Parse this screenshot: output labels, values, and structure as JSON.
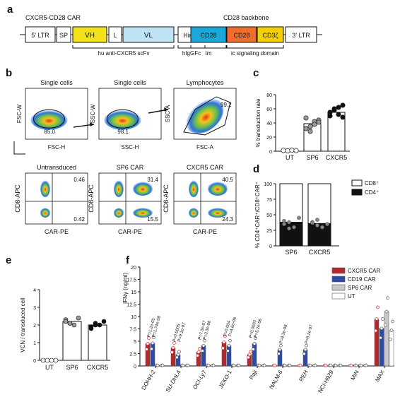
{
  "panels": {
    "a": "a",
    "b": "b",
    "c": "c",
    "d": "d",
    "e": "e",
    "f": "f"
  },
  "construct": {
    "title_left": "CXCR5-CD28 CAR",
    "title_right": "CD28 backbone",
    "segments": [
      {
        "label": "5' LTR",
        "color": "#ffffff"
      },
      {
        "label": "SP",
        "color": "#ffffff"
      },
      {
        "label": "VH",
        "color": "#f2e21a"
      },
      {
        "label": "L",
        "color": "#ffffff"
      },
      {
        "label": "VL",
        "color": "#bfe3f5"
      },
      {
        "label": "Hinge",
        "color": "#ffffff"
      },
      {
        "label": "CD28",
        "color": "#1aa7d9"
      },
      {
        "label": "CD28",
        "color": "#ee6f2d"
      },
      {
        "label": "CD3ζ",
        "color": "#f5d000"
      },
      {
        "label": "3' LTR",
        "color": "#ffffff"
      }
    ],
    "annotations": [
      "hu anti-CXCR5 scFv",
      "hIgGFc",
      "tm",
      "ic signaling domain"
    ]
  },
  "flow": {
    "top": [
      {
        "title": "Single cells",
        "y": "FSC-W",
        "x": "FSC-H",
        "gate": "85.0"
      },
      {
        "title": "Single cells",
        "y": "SSC-W",
        "x": "SSC-H",
        "gate": "98.1"
      },
      {
        "title": "Lymphocytes",
        "y": "SSC-A",
        "x": "FSC-A",
        "gate": "99.2"
      }
    ],
    "bottom": [
      {
        "title": "Untransduced",
        "y": "CD8-APC",
        "x": "CAR-PE",
        "ur": "0.46",
        "lr": "0.42"
      },
      {
        "title": "SP6 CAR",
        "y": "CD8-APC",
        "x": "CAR-PE",
        "ur": "31.4",
        "lr": "15.5"
      },
      {
        "title": "CXCR5 CAR",
        "y": "CD8-APC",
        "x": "CAR-PE",
        "ur": "40.5",
        "lr": "24.3"
      }
    ]
  },
  "chart_data": [
    {
      "id": "c",
      "type": "bar",
      "categories": [
        "UT",
        "SP6",
        "CXCR5"
      ],
      "values": [
        1,
        39,
        55
      ],
      "points": [
        [
          1,
          0.5,
          1.5,
          0.8,
          1.2,
          0.6,
          1.4,
          0.9
        ],
        [
          32,
          35,
          42,
          44,
          47,
          28,
          38,
          41
        ],
        [
          50,
          58,
          62,
          48,
          55,
          60,
          52,
          65
        ]
      ],
      "ylabel": "% transduction rate",
      "yticks": [
        "0",
        "20",
        "40",
        "60",
        "80"
      ],
      "ylim": [
        0,
        80
      ]
    },
    {
      "id": "d",
      "type": "bar",
      "categories": [
        "SP6",
        "CXCR5"
      ],
      "series": [
        {
          "name": "CD8⁺",
          "values": [
            62,
            64
          ]
        },
        {
          "name": "CD4⁺",
          "values": [
            38,
            36
          ]
        }
      ],
      "points": [
        [
          40,
          38,
          30,
          45,
          35,
          28
        ],
        [
          38,
          42,
          30,
          35,
          37,
          33
        ]
      ],
      "ylabel": "% CD4⁺CAR⁺/CD8⁺CAR⁺",
      "yticks": [
        "0",
        "25",
        "50",
        "75",
        "100"
      ],
      "ylim": [
        0,
        100
      ]
    },
    {
      "id": "e",
      "type": "bar",
      "categories": [
        "UT",
        "SP6",
        "CXCR5"
      ],
      "values": [
        0,
        2.2,
        2.0
      ],
      "points": [
        [
          0,
          0,
          0,
          0
        ],
        [
          2.3,
          2.1,
          2.0,
          2.4,
          2.2,
          2.1
        ],
        [
          1.9,
          2.1,
          2.0,
          2.2,
          1.8,
          2.0
        ]
      ],
      "ylabel": "VCN / transduced cell",
      "yticks": [
        "0",
        "1",
        "2",
        "3",
        "4"
      ],
      "ylim": [
        0,
        4
      ]
    },
    {
      "id": "f",
      "type": "bar",
      "categories": [
        "DOHH-2",
        "SU-DHL4",
        "OCI-Ly7",
        "JEKO-1",
        "Raji",
        "NALM-6",
        "REH",
        "NCI-H929",
        "MIN",
        "MAX"
      ],
      "series": [
        {
          "name": "CXCR5 CAR",
          "color": "#b22a2e",
          "values": [
            4.5,
            3.7,
            2.8,
            4.8,
            2.3,
            0,
            0,
            0,
            0,
            9.5
          ]
        },
        {
          "name": "CD19 CAR",
          "color": "#2e4aa8",
          "values": [
            4.6,
            2.3,
            4.1,
            4.1,
            4.5,
            3.3,
            3.3,
            0,
            0,
            7.6
          ]
        },
        {
          "name": "SP6  CAR",
          "color": "#c8c8c8",
          "values": [
            0,
            0,
            0,
            0,
            0,
            0,
            0,
            0,
            0,
            11
          ]
        },
        {
          "name": "UT",
          "color": "#ffffff",
          "values": [
            0,
            0,
            0,
            0,
            0,
            0,
            0,
            0,
            0,
            7.2
          ]
        }
      ],
      "pvalues": [
        [
          "P=1.2e-05",
          "P=1.74e-08"
        ],
        [
          "P=0.0005",
          "P=9.1e-07"
        ],
        [
          "P=7.3e-07",
          "P=3.3e-08"
        ],
        [
          "P=0.004",
          "P=4.6e-06"
        ],
        [
          "P=0.0003",
          "P=5.2e-06"
        ],
        [
          "",
          "P=8.3e-08"
        ],
        [
          "",
          "P=8.2e-07"
        ],
        [
          "",
          ""
        ],
        [
          "",
          ""
        ],
        [
          "",
          ""
        ]
      ],
      "ylabel": "IFNγ (ng/ml)",
      "yticks": [
        "0",
        "2.5",
        "5",
        "7.5",
        "10",
        "12.5",
        "15",
        "17.5",
        "20"
      ],
      "ylim": [
        0,
        20
      ]
    }
  ]
}
